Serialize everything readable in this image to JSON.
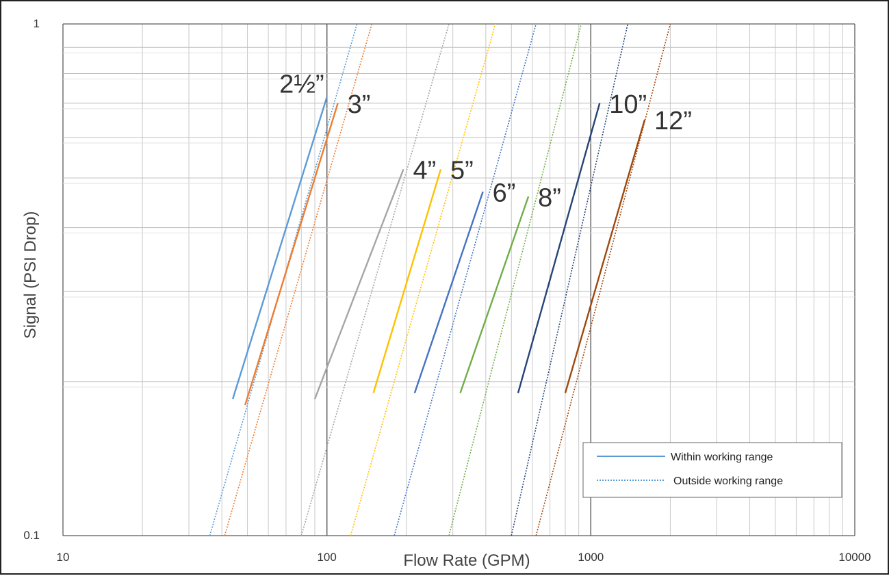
{
  "chart_data": {
    "type": "line",
    "title": "",
    "xlabel": "Flow Rate (GPM)",
    "ylabel": "Signal (PSI Drop)",
    "x_scale": "log",
    "y_scale": "log",
    "xlim": [
      10,
      10000
    ],
    "ylim": [
      0.1,
      1
    ],
    "x_tick_labels": [
      "10",
      "100",
      "1000",
      "10000"
    ],
    "y_tick_labels": [
      "0.1",
      "1"
    ],
    "grid": true,
    "legend_position": "bottom-right",
    "legend": [
      {
        "label": "Within working range",
        "style": "solid"
      },
      {
        "label": "Outside working range",
        "style": "dotted"
      }
    ],
    "series": [
      {
        "name": "2½”",
        "color": "#5b9bd5",
        "outside": [
          [
            36,
            0.1
          ],
          [
            130,
            1.0
          ]
        ],
        "within": [
          [
            44,
            0.185
          ],
          [
            100,
            0.72
          ]
        ]
      },
      {
        "name": "3”",
        "color": "#ed7d31",
        "outside": [
          [
            41,
            0.1
          ],
          [
            148,
            1.0
          ]
        ],
        "within": [
          [
            49,
            0.18
          ],
          [
            110,
            0.7
          ]
        ]
      },
      {
        "name": "4”",
        "color": "#a5a5a5",
        "outside": [
          [
            80,
            0.1
          ],
          [
            290,
            1.0
          ]
        ],
        "within": [
          [
            90,
            0.185
          ],
          [
            195,
            0.52
          ]
        ]
      },
      {
        "name": "5”",
        "color": "#ffc000",
        "outside": [
          [
            123,
            0.1
          ],
          [
            435,
            1.0
          ]
        ],
        "within": [
          [
            150,
            0.19
          ],
          [
            270,
            0.52
          ]
        ]
      },
      {
        "name": "6”",
        "color": "#4472c4",
        "outside": [
          [
            180,
            0.1
          ],
          [
            620,
            1.0
          ]
        ],
        "within": [
          [
            215,
            0.19
          ],
          [
            390,
            0.47
          ]
        ]
      },
      {
        "name": "8”",
        "color": "#70ad47",
        "outside": [
          [
            290,
            0.1
          ],
          [
            920,
            1.0
          ]
        ],
        "within": [
          [
            320,
            0.19
          ],
          [
            580,
            0.46
          ]
        ]
      },
      {
        "name": "10”",
        "color": "#264478",
        "outside": [
          [
            500,
            0.1
          ],
          [
            1380,
            1.0
          ]
        ],
        "within": [
          [
            530,
            0.19
          ],
          [
            1080,
            0.7
          ]
        ]
      },
      {
        "name": "12”",
        "color": "#9e480e",
        "outside": [
          [
            620,
            0.1
          ],
          [
            2000,
            1.0
          ]
        ],
        "within": [
          [
            800,
            0.19
          ],
          [
            1600,
            0.65
          ]
        ]
      }
    ]
  }
}
